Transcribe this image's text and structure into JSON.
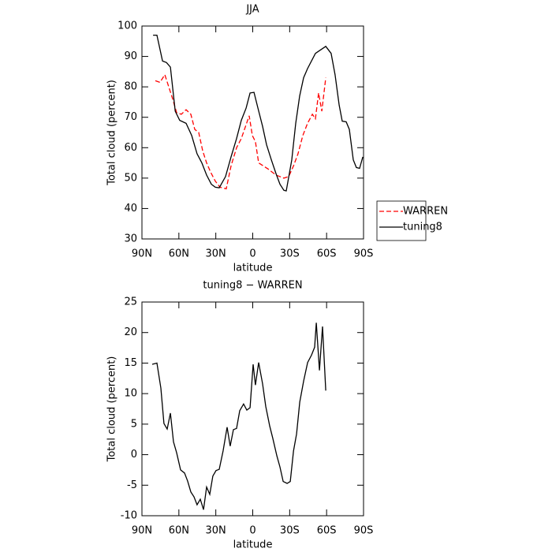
{
  "chart_data": [
    {
      "type": "line",
      "title": "JJA",
      "xlabel": "latitude",
      "ylabel": "Total cloud (percent)",
      "xlim": [
        90,
        -90
      ],
      "xticks": [
        {
          "value": 90,
          "label": "90N"
        },
        {
          "value": 60,
          "label": "60N"
        },
        {
          "value": 30,
          "label": "30N"
        },
        0,
        {
          "value": -30,
          "label": "30S"
        },
        {
          "value": -60,
          "label": "60S"
        },
        {
          "value": -90,
          "label": "90S"
        }
      ],
      "ylim": [
        30,
        100
      ],
      "yticks": [
        30,
        40,
        50,
        60,
        70,
        80,
        90,
        100
      ],
      "legend": "right",
      "series": [
        {
          "name": "WARREN",
          "color": "#ff0000",
          "line_style": "dashed",
          "x": [
            79.1,
            75.3,
            71.4,
            68.2,
            65.0,
            61.8,
            58.0,
            54.1,
            50.3,
            47.1,
            43.9,
            40.7,
            37.5,
            34.3,
            30.4,
            26.6,
            21.5,
            17.6,
            13.1,
            9.3,
            2.9,
            0.3,
            -2.2,
            -4.8,
            -12.5,
            -18.9,
            -25.3,
            -29.2,
            -33.1,
            -36.8,
            -40.7,
            -44.5,
            -48.4,
            -50.9,
            -53.5,
            -56.1,
            -59.3
          ],
          "values": [
            82,
            81.5,
            84,
            80,
            76,
            71.5,
            71,
            72.5,
            71,
            66,
            65,
            59,
            55,
            52,
            49,
            47,
            46.5,
            54,
            60,
            63,
            70.5,
            64,
            62,
            55,
            53,
            51,
            50,
            50.5,
            54,
            58,
            64,
            68,
            71,
            69.5,
            78,
            72,
            83
          ]
        },
        {
          "name": "tuning8",
          "color": "#000000",
          "line_style": "solid",
          "x": [
            81.0,
            77.8,
            73.3,
            70.1,
            66.9,
            63.0,
            59.3,
            54.1,
            49.6,
            45.2,
            41.3,
            37.5,
            33.6,
            30.4,
            27.2,
            22.1,
            17.6,
            13.1,
            9.3,
            5.4,
            2.2,
            -1.0,
            -4.2,
            -8.0,
            -11.2,
            -15.1,
            -18.9,
            -22.1,
            -25.3,
            -27.2,
            -31.7,
            -34.9,
            -38.1,
            -41.3,
            -44.5,
            -50.9,
            -59.3,
            -63.7,
            -66.9,
            -70.2,
            -72.7,
            -75.9,
            -78.5,
            -81.7,
            -84.2,
            -86.8,
            -89.4
          ],
          "values": [
            97,
            97,
            88.5,
            88,
            86.5,
            72,
            69,
            68,
            64,
            58,
            55,
            51,
            48,
            47,
            46.8,
            50.5,
            57,
            63,
            69,
            73,
            78,
            78.2,
            73,
            67,
            61,
            56,
            51.5,
            48,
            46,
            45.8,
            56,
            68,
            77,
            83,
            86,
            91,
            93.3,
            91,
            84,
            74,
            68.7,
            68.5,
            66,
            56,
            53.5,
            53.2,
            57
          ]
        }
      ]
    },
    {
      "type": "line",
      "title": "tuning8 − WARREN",
      "xlabel": "latitude",
      "ylabel": "Total cloud (percent)",
      "xlim": [
        90,
        -90
      ],
      "xticks": [
        {
          "value": 90,
          "label": "90N"
        },
        {
          "value": 60,
          "label": "60N"
        },
        {
          "value": 30,
          "label": "30N"
        },
        0,
        {
          "value": -30,
          "label": "30S"
        },
        {
          "value": -60,
          "label": "60S"
        },
        {
          "value": -90,
          "label": "90S"
        }
      ],
      "ylim": [
        -10,
        25
      ],
      "yticks": [
        -10,
        -5,
        0,
        5,
        10,
        15,
        20,
        25
      ],
      "series": [
        {
          "color": "#000000",
          "line_style": "solid",
          "x": [
            81.7,
            77.8,
            74.6,
            72.1,
            69.5,
            66.9,
            64.4,
            61.8,
            58.6,
            55.4,
            52.9,
            50.3,
            47.7,
            45.2,
            42.6,
            40.0,
            37.5,
            34.9,
            32.4,
            29.8,
            27.2,
            24.1,
            20.8,
            18.3,
            15.7,
            13.1,
            10.6,
            7.4,
            4.8,
            2.2,
            -0.3,
            -2.2,
            -4.8,
            -8.0,
            -10.6,
            -13.8,
            -16.3,
            -19.6,
            -22.1,
            -24.7,
            -27.9,
            -30.5,
            -33.1,
            -35.6,
            -38.2,
            -41.4,
            -44.6,
            -47.7,
            -50.3,
            -51.6,
            -54.2,
            -56.7,
            -59.3
          ],
          "values": [
            14.8,
            15.0,
            10.9,
            5.1,
            4.2,
            6.8,
            2.1,
            0.3,
            -2.5,
            -3.0,
            -4.3,
            -6.1,
            -6.9,
            -8.2,
            -7.3,
            -9.0,
            -5.3,
            -6.5,
            -3.5,
            -2.6,
            -2.4,
            0.6,
            4.5,
            1.4,
            4.1,
            4.3,
            7.2,
            8.3,
            7.3,
            7.7,
            14.8,
            11.4,
            15.1,
            11.6,
            7.9,
            4.7,
            2.7,
            -0.2,
            -2.0,
            -4.4,
            -4.7,
            -4.4,
            0.6,
            3.4,
            8.6,
            12.1,
            15.1,
            16.3,
            17.6,
            21.6,
            13.8,
            21.0,
            10.5
          ]
        }
      ]
    }
  ]
}
